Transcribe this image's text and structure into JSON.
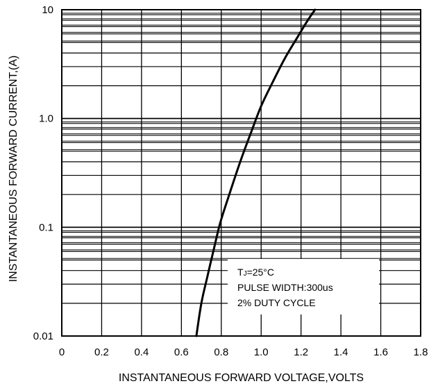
{
  "chart_data": {
    "type": "line",
    "title": "",
    "xlabel": "INSTANTANEOUS FORWARD VOLTAGE,VOLTS",
    "ylabel": "INSTANTANEOUS FORWARD CURRENT,(A)",
    "x_scale": "linear",
    "y_scale": "log",
    "xlim": [
      0,
      1.8
    ],
    "ylim": [
      0.01,
      10
    ],
    "grid": true,
    "x_ticks": [
      {
        "value": 0,
        "label": "0"
      },
      {
        "value": 0.2,
        "label": "0.2"
      },
      {
        "value": 0.4,
        "label": "0.4"
      },
      {
        "value": 0.6,
        "label": "0.6"
      },
      {
        "value": 0.8,
        "label": "0.8"
      },
      {
        "value": 1.0,
        "label": "1.0"
      },
      {
        "value": 1.2,
        "label": "1.2"
      },
      {
        "value": 1.4,
        "label": "1.4"
      },
      {
        "value": 1.6,
        "label": "1.6"
      },
      {
        "value": 1.8,
        "label": "1.8"
      }
    ],
    "y_ticks": [
      {
        "value": 0.01,
        "label": "0.01"
      },
      {
        "value": 0.1,
        "label": "0.1"
      },
      {
        "value": 1,
        "label": "1.0"
      },
      {
        "value": 10,
        "label": "10"
      }
    ],
    "series": [
      {
        "color": "#000000",
        "points": [
          {
            "x": 0.675,
            "y": 0.01
          },
          {
            "x": 0.7,
            "y": 0.02
          },
          {
            "x": 0.73,
            "y": 0.035
          },
          {
            "x": 0.76,
            "y": 0.06
          },
          {
            "x": 0.795,
            "y": 0.11
          },
          {
            "x": 0.84,
            "y": 0.2
          },
          {
            "x": 0.895,
            "y": 0.4
          },
          {
            "x": 0.95,
            "y": 0.75
          },
          {
            "x": 1.0,
            "y": 1.3
          },
          {
            "x": 1.06,
            "y": 2.2
          },
          {
            "x": 1.12,
            "y": 3.6
          },
          {
            "x": 1.18,
            "y": 5.5
          },
          {
            "x": 1.23,
            "y": 7.8
          },
          {
            "x": 1.27,
            "y": 10
          }
        ]
      }
    ],
    "annotation": {
      "lines": [
        "TJ=25°C",
        "PULSE WIDTH:300us",
        "2% DUTY CYCLE"
      ],
      "placement": "lower-right"
    }
  }
}
